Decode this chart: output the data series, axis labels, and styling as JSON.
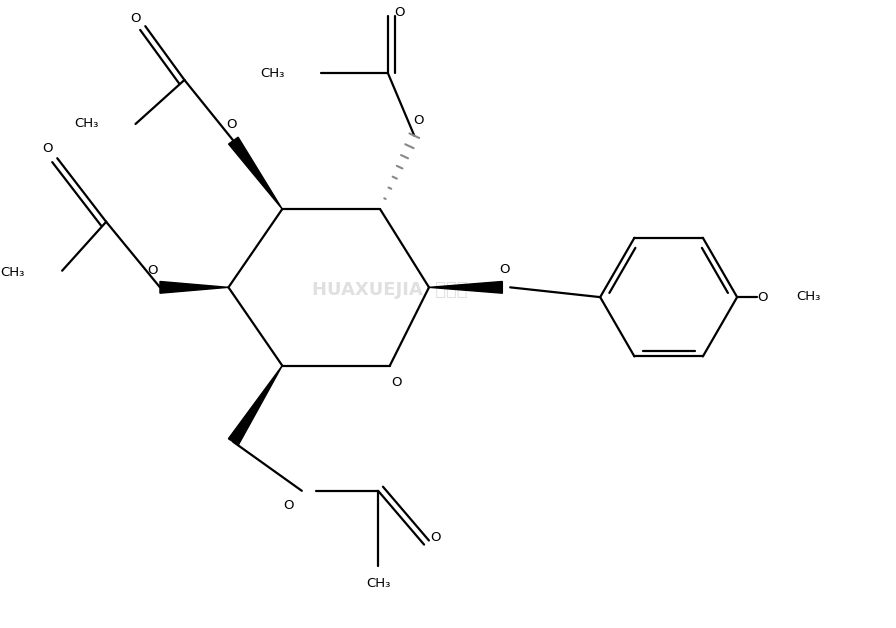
{
  "bg_color": "#ffffff",
  "line_color": "#000000",
  "gray_color": "#888888",
  "figsize": [
    8.96,
    6.28
  ],
  "dpi": 100,
  "xlim": [
    0,
    8.96
  ],
  "ylim": [
    0,
    6.28
  ]
}
